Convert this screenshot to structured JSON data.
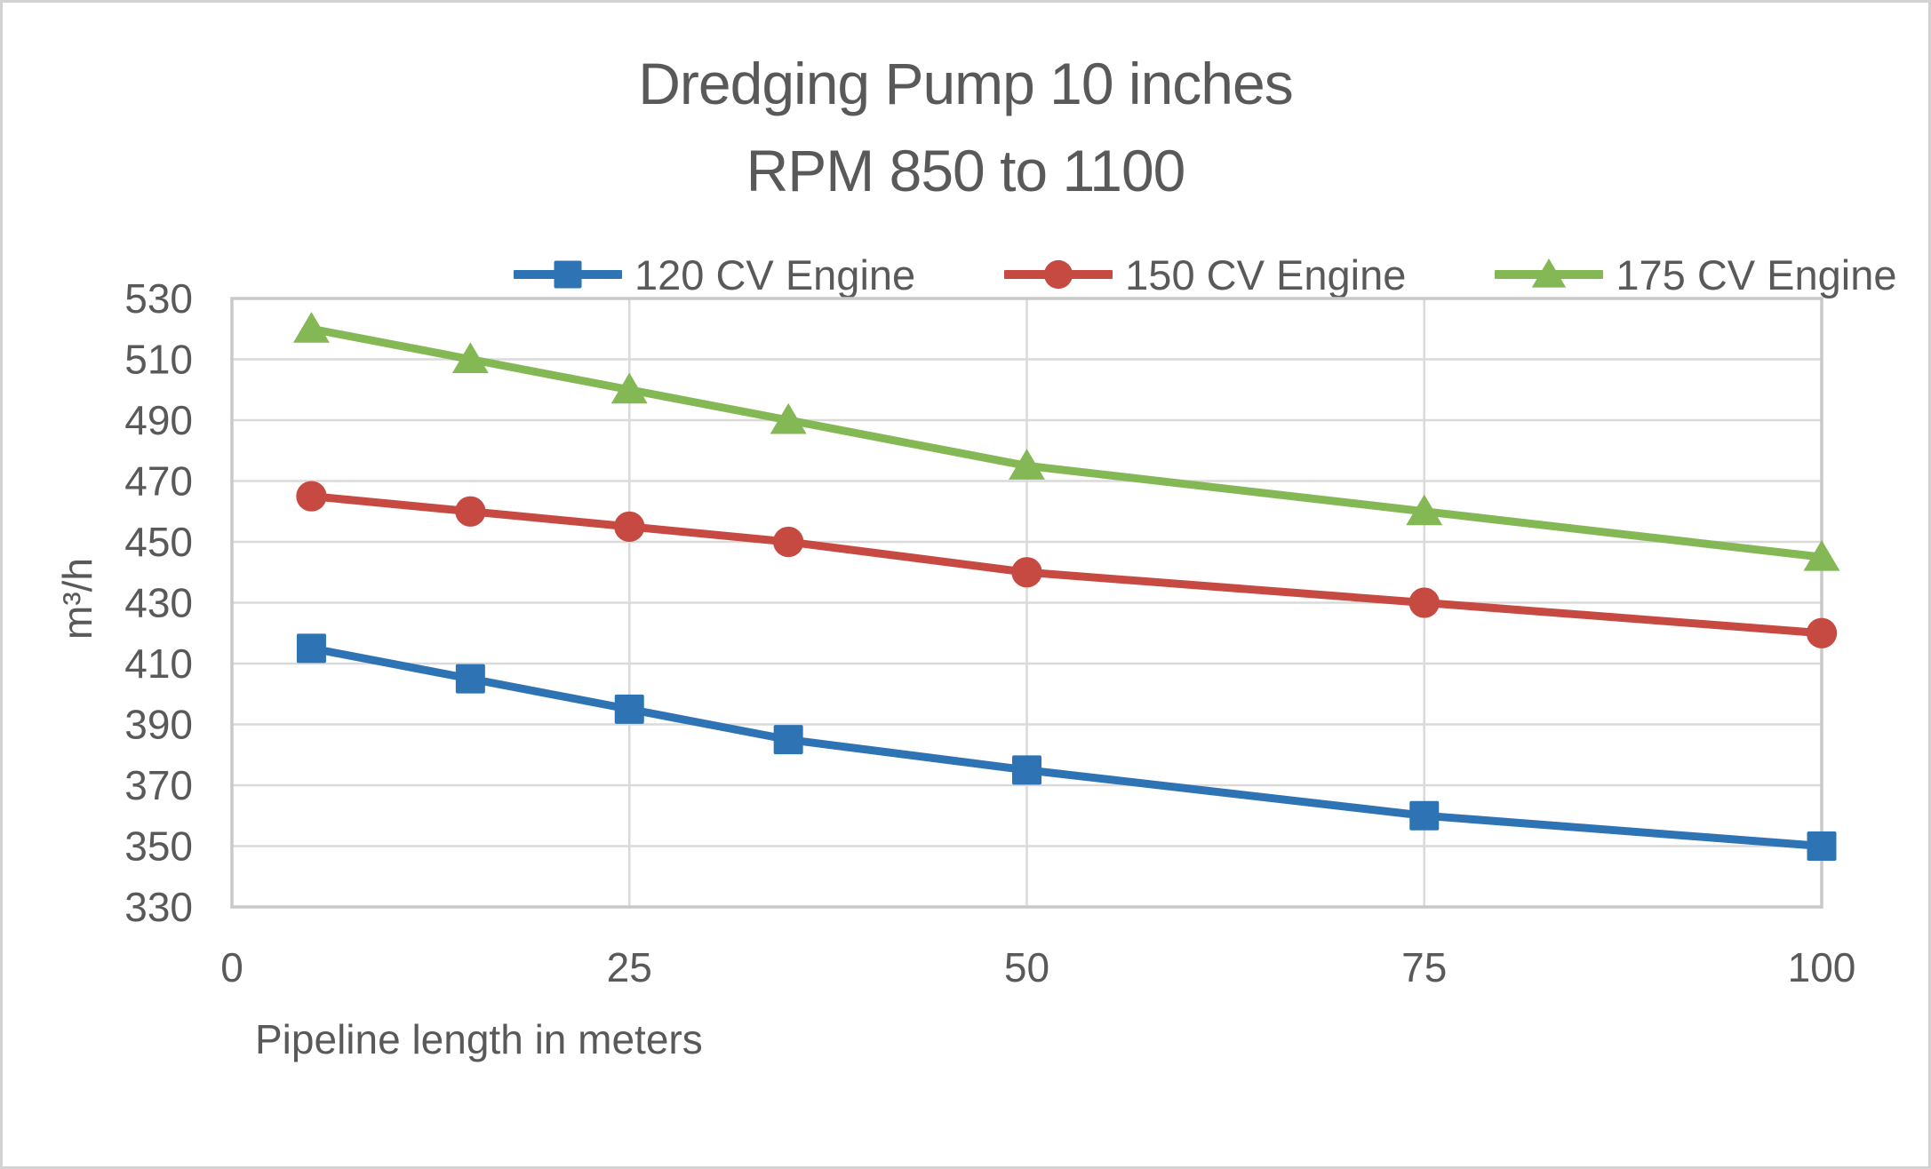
{
  "chart_data": {
    "type": "line",
    "title_line1": "Dredging Pump 10 inches",
    "title_line2": "RPM 850 to 1100",
    "xlabel": "Pipeline length in meters",
    "ylabel": "m³/h",
    "xlim": [
      0,
      100
    ],
    "ylim": [
      330,
      530
    ],
    "x_ticks": [
      0,
      25,
      50,
      75,
      100
    ],
    "y_ticks": [
      330,
      350,
      370,
      390,
      410,
      430,
      450,
      470,
      490,
      510,
      530
    ],
    "grid": true,
    "legend_position": "top",
    "x": [
      5,
      15,
      25,
      35,
      50,
      75,
      100
    ],
    "series": [
      {
        "name": "120 CV Engine",
        "color": "#2E74B5",
        "marker": "square",
        "values": [
          415,
          405,
          395,
          385,
          375,
          360,
          350
        ]
      },
      {
        "name": "150 CV Engine",
        "color": "#C74A42",
        "marker": "circle",
        "values": [
          465,
          460,
          455,
          450,
          440,
          430,
          420
        ]
      },
      {
        "name": "175 CV Engine",
        "color": "#83B854",
        "marker": "triangle",
        "values": [
          520,
          510,
          500,
          490,
          475,
          460,
          445
        ]
      }
    ],
    "colors": {
      "text": "#595959",
      "gridline": "#DADADA",
      "plot_border": "#C9C9C9"
    }
  }
}
